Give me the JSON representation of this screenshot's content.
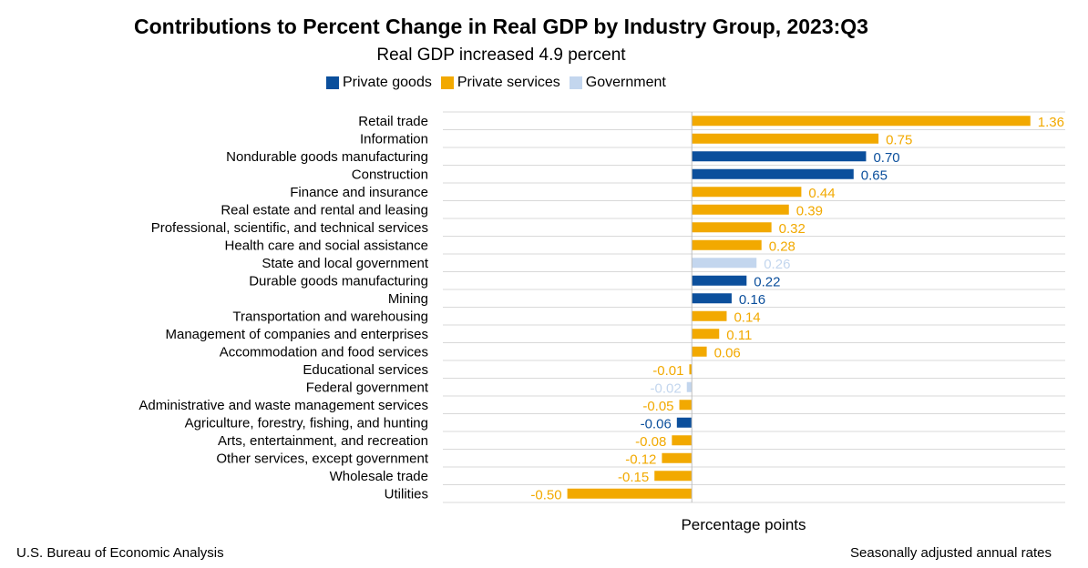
{
  "chart_data": {
    "type": "bar",
    "orientation": "horizontal",
    "title": "Contributions to Percent Change in Real GDP by Industry Group, 2023:Q3",
    "subtitle": "Real GDP increased 4.9 percent",
    "xlabel": "Percentage points",
    "ylabel": "",
    "xlim": [
      -1.0,
      1.5
    ],
    "grid": true,
    "legend_position": "top",
    "legend": [
      {
        "name": "Private goods",
        "color": "#0b4f9c"
      },
      {
        "name": "Private services",
        "color": "#f2a900"
      },
      {
        "name": "Government",
        "color": "#c3d6ee"
      }
    ],
    "categories": [
      "Retail trade",
      "Information",
      "Nondurable goods manufacturing",
      "Construction",
      "Finance and insurance",
      "Real estate and rental and leasing",
      "Professional, scientific, and technical services",
      "Health care and social assistance",
      "State and local government",
      "Durable goods manufacturing",
      "Mining",
      "Transportation and warehousing",
      "Management of companies and enterprises",
      "Accommodation and food services",
      "Educational services",
      "Federal government",
      "Administrative and waste management services",
      "Agriculture, forestry, fishing, and hunting",
      "Arts, entertainment, and recreation",
      "Other services, except government",
      "Wholesale trade",
      "Utilities"
    ],
    "values": [
      1.36,
      0.75,
      0.7,
      0.65,
      0.44,
      0.39,
      0.32,
      0.28,
      0.26,
      0.22,
      0.16,
      0.14,
      0.11,
      0.06,
      -0.01,
      -0.02,
      -0.05,
      -0.06,
      -0.08,
      -0.12,
      -0.15,
      -0.5
    ],
    "labels": [
      "1.36",
      "0.75",
      "0.70",
      "0.65",
      "0.44",
      "0.39",
      "0.32",
      "0.28",
      "0.26",
      "0.22",
      "0.16",
      "0.14",
      "0.11",
      "0.06",
      "-0.01",
      "-0.02",
      "-0.05",
      "-0.06",
      "-0.08",
      "-0.12",
      "-0.15",
      "-0.50"
    ],
    "groups": [
      "Private services",
      "Private services",
      "Private goods",
      "Private goods",
      "Private services",
      "Private services",
      "Private services",
      "Private services",
      "Government",
      "Private goods",
      "Private goods",
      "Private services",
      "Private services",
      "Private services",
      "Private services",
      "Government",
      "Private services",
      "Private goods",
      "Private services",
      "Private services",
      "Private services",
      "Private services"
    ]
  },
  "footer": {
    "source": "U.S. Bureau of Economic Analysis",
    "note": "Seasonally adjusted annual rates"
  }
}
